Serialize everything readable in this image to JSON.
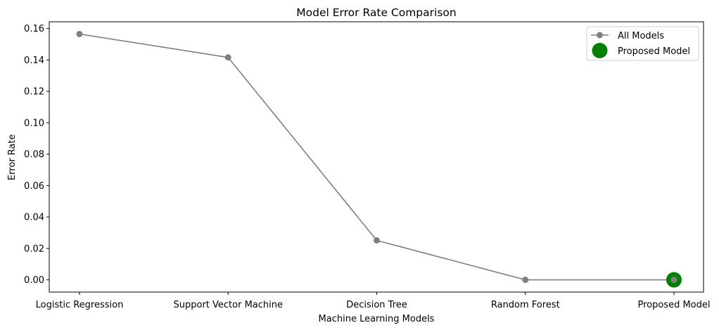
{
  "chart_data": {
    "type": "line",
    "title": "Model Error Rate Comparison",
    "xlabel": "Machine Learning Models",
    "ylabel": "Error Rate",
    "categories": [
      "Logistic Regression",
      "Support Vector Machine",
      "Decision Tree",
      "Random Forest",
      "Proposed Model"
    ],
    "series": [
      {
        "name": "All Models",
        "values": [
          0.1565,
          0.1416,
          0.0251,
          0.0,
          0.0
        ],
        "color": "#808080"
      }
    ],
    "highlight": {
      "name": "Proposed Model",
      "category": "Proposed Model",
      "value": 0.0,
      "color": "#008000"
    },
    "yticks": [
      0.0,
      0.02,
      0.04,
      0.06,
      0.08,
      0.1,
      0.12,
      0.14,
      0.16
    ],
    "ylim": [
      -0.0078,
      0.1643
    ],
    "grid": false,
    "legend_position": "top-right"
  }
}
